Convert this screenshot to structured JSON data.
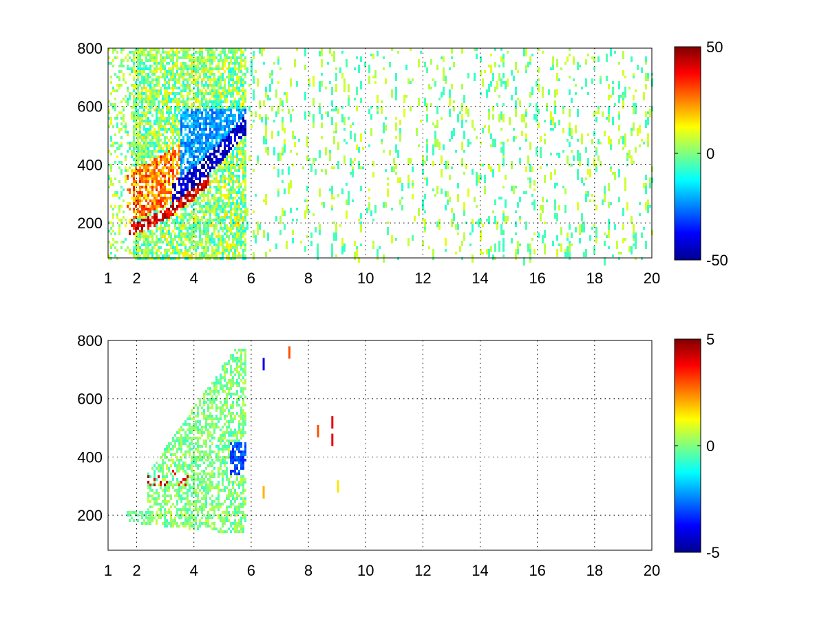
{
  "chart_data": [
    {
      "type": "heatmap",
      "title": "",
      "xlabel": "",
      "ylabel": "",
      "xlim": [
        1,
        20
      ],
      "ylim": [
        80,
        800
      ],
      "x_ticks": [
        "1",
        "2",
        "4",
        "6",
        "8",
        "10",
        "12",
        "14",
        "16",
        "18",
        "20"
      ],
      "x_tick_values": [
        1,
        2,
        4,
        6,
        8,
        10,
        12,
        14,
        16,
        18,
        20
      ],
      "y_ticks": [
        "200",
        "400",
        "600",
        "800"
      ],
      "y_tick_values": [
        200,
        400,
        600,
        800
      ],
      "grid": true,
      "colormap": "jet",
      "colorbar": {
        "clim": [
          -50,
          50
        ],
        "ticks": [
          "-50",
          "0",
          "50"
        ],
        "tick_values": [
          -50,
          0,
          50
        ],
        "placement": "right"
      },
      "sparse_points": [
        {
          "x": 1.0,
          "y": 180
        },
        {
          "x": 1.5,
          "y": 195
        },
        {
          "x": 2.0,
          "y": 200
        },
        {
          "x": 2.5,
          "y": 210
        },
        {
          "x": 3.0,
          "y": 230
        },
        {
          "x": 3.5,
          "y": 250
        },
        {
          "x": 4.0,
          "y": 270
        },
        {
          "x": 4.5,
          "y": 300
        },
        {
          "x": 5.0,
          "y": 330
        },
        {
          "x": 5.5,
          "y": 360
        },
        {
          "x": 5.8,
          "y": 380
        }
      ],
      "data_description_values": {
        "extent_dense_x": [
          1.0,
          5.8
        ],
        "extent_sparse_x": [
          5.8,
          20.0
        ]
      }
    },
    {
      "type": "heatmap",
      "title": "",
      "xlabel": "",
      "ylabel": "",
      "xlim": [
        1,
        20
      ],
      "ylim": [
        80,
        800
      ],
      "x_ticks": [
        "1",
        "2",
        "4",
        "6",
        "8",
        "10",
        "12",
        "14",
        "16",
        "18",
        "20"
      ],
      "x_tick_values": [
        1,
        2,
        4,
        6,
        8,
        10,
        12,
        14,
        16,
        18,
        20
      ],
      "y_ticks": [
        "200",
        "400",
        "600",
        "800"
      ],
      "y_tick_values": [
        200,
        400,
        600,
        800
      ],
      "grid": true,
      "colormap": "jet",
      "colorbar": {
        "clim": [
          -5,
          5
        ],
        "ticks": [
          "-5",
          "0",
          "5"
        ],
        "tick_values": [
          -5,
          0,
          5
        ],
        "placement": "right"
      },
      "data_description_values": {
        "extent_dense_x": [
          1.6,
          5.8
        ]
      }
    }
  ]
}
